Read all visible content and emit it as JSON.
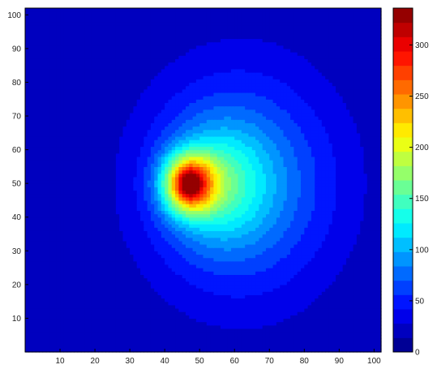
{
  "chart_data": {
    "type": "heatmap",
    "title": "",
    "xlabel": "",
    "ylabel": "",
    "xlim": [
      0,
      102
    ],
    "ylim": [
      0,
      102
    ],
    "x_ticks": [
      10,
      20,
      30,
      40,
      50,
      60,
      70,
      80,
      90,
      100
    ],
    "y_ticks": [
      10,
      20,
      30,
      40,
      50,
      60,
      70,
      80,
      90,
      100
    ],
    "grid": false,
    "colormap": "jet",
    "colorbar": {
      "position": "right",
      "range": [
        0,
        336
      ],
      "levels": 24,
      "ticks": [
        0,
        50,
        100,
        150,
        200,
        250,
        300
      ]
    },
    "peak": {
      "x": 47,
      "y": 50,
      "value": 336
    },
    "field_description_values": {
      "background_value": 15,
      "outer_halo_center": [
        62,
        50
      ],
      "hotspot_center": [
        47,
        50
      ]
    }
  }
}
